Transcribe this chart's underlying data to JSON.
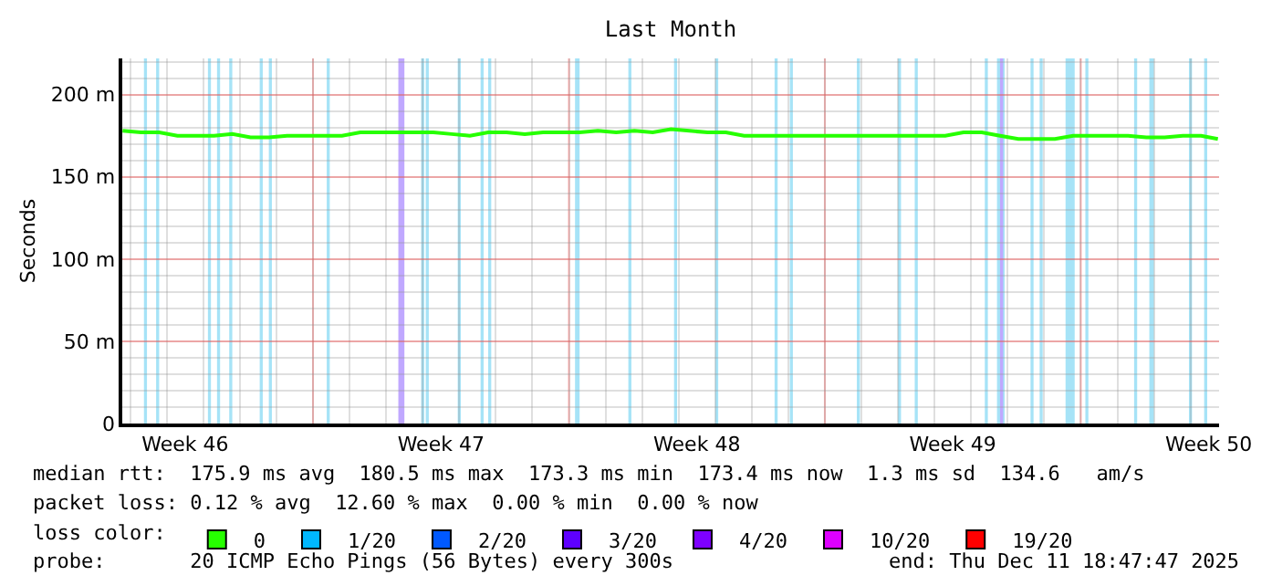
{
  "chart_data": {
    "type": "line",
    "title": "Last Month",
    "ylabel": "Seconds",
    "legend_title": "loss color:",
    "legend": "bottom",
    "grid": true,
    "marker": "none",
    "line_style": "solid",
    "xlim": [
      "2025-11-11T18:47",
      "2025-12-11T18:47"
    ],
    "xticks": [
      {
        "value": "2025-11-13T12:00",
        "label": "Week 46"
      },
      {
        "value": "2025-11-17T00:00",
        "label": null
      },
      {
        "value": "2025-11-20T12:00",
        "label": "Week 47"
      },
      {
        "value": "2025-11-24T00:00",
        "label": null
      },
      {
        "value": "2025-11-27T12:00",
        "label": "Week 48"
      },
      {
        "value": "2025-12-01T00:00",
        "label": null
      },
      {
        "value": "2025-12-04T12:00",
        "label": "Week 49"
      },
      {
        "value": "2025-12-08T00:00",
        "label": null
      },
      {
        "value": "2025-12-11T12:00",
        "label": "Week 50"
      }
    ],
    "ylim": [
      0,
      222
    ],
    "yticks": [
      0,
      {
        "value": 50,
        "label": "50 m"
      },
      {
        "value": 100,
        "label": "100 m"
      },
      {
        "value": 150,
        "label": "150 m"
      },
      {
        "value": 200,
        "label": "200 m"
      }
    ],
    "series": [
      {
        "name": "0",
        "color": "#26ff00",
        "x": [
          "2025-11-11T19:00",
          "2025-11-12T07:00",
          "2025-11-12T19:00",
          "2025-11-13T07:00",
          "2025-11-13T19:00",
          "2025-11-14T07:00",
          "2025-11-14T19:00",
          "2025-11-15T07:00",
          "2025-11-15T19:00",
          "2025-11-16T07:00",
          "2025-11-16T19:00",
          "2025-11-17T07:00",
          "2025-11-17T19:00",
          "2025-11-18T07:00",
          "2025-11-18T19:00",
          "2025-11-19T07:00",
          "2025-11-19T19:00",
          "2025-11-20T07:00",
          "2025-11-20T19:00",
          "2025-11-21T07:00",
          "2025-11-21T19:00",
          "2025-11-22T07:00",
          "2025-11-22T19:00",
          "2025-11-23T07:00",
          "2025-11-23T19:00",
          "2025-11-24T07:00",
          "2025-11-24T19:00",
          "2025-11-25T07:00",
          "2025-11-25T19:00",
          "2025-11-26T07:00",
          "2025-11-26T19:00",
          "2025-11-27T07:00",
          "2025-11-27T19:00",
          "2025-11-28T07:00",
          "2025-11-28T19:00",
          "2025-11-29T07:00",
          "2025-11-29T19:00",
          "2025-11-30T07:00",
          "2025-11-30T19:00",
          "2025-12-01T07:00",
          "2025-12-01T19:00",
          "2025-12-02T07:00",
          "2025-12-02T19:00",
          "2025-12-03T07:00",
          "2025-12-03T19:00",
          "2025-12-04T07:00",
          "2025-12-04T19:00",
          "2025-12-05T07:00",
          "2025-12-05T19:00",
          "2025-12-06T07:00",
          "2025-12-06T19:00",
          "2025-12-07T07:00",
          "2025-12-07T19:00",
          "2025-12-08T07:00",
          "2025-12-08T19:00",
          "2025-12-09T07:00",
          "2025-12-09T19:00",
          "2025-12-10T07:00",
          "2025-12-10T19:00",
          "2025-12-11T07:00",
          "2025-12-11T18:00"
        ],
        "values": [
          178,
          177,
          177,
          175,
          175,
          175,
          176,
          174,
          174,
          175,
          175,
          175,
          175,
          177,
          177,
          177,
          177,
          177,
          176,
          175,
          177,
          177,
          176,
          177,
          177,
          177,
          178,
          177,
          178,
          177,
          179,
          178,
          177,
          177,
          175,
          175,
          175,
          175,
          175,
          175,
          175,
          175,
          175,
          175,
          175,
          175,
          177,
          177,
          175,
          173,
          173,
          173,
          175,
          175,
          175,
          175,
          174,
          174,
          175,
          175,
          173
        ]
      },
      {
        "name": "1/20",
        "color": "#00b8ff"
      },
      {
        "name": "2/20",
        "color": "#0059ff"
      },
      {
        "name": "3/20",
        "color": "#5e00ff"
      },
      {
        "name": "4/20",
        "color": "#7e00ff"
      },
      {
        "name": "10/20",
        "color": "#dd00ff"
      },
      {
        "name": "19/20",
        "color": "#ff0000"
      }
    ],
    "bands": [
      {
        "axis": "x",
        "from": "2025-11-12T09:00",
        "to": "2025-11-12T11:00",
        "color": "#a6e3f7"
      },
      {
        "axis": "x",
        "from": "2025-11-12T17:00",
        "to": "2025-11-12T19:00",
        "color": "#a6e3f7"
      },
      {
        "axis": "x",
        "from": "2025-11-14T03:00",
        "to": "2025-11-14T05:00",
        "color": "#a6e3f7"
      },
      {
        "axis": "x",
        "from": "2025-11-14T09:00",
        "to": "2025-11-14T11:00",
        "color": "#a6e3f7"
      },
      {
        "axis": "x",
        "from": "2025-11-14T17:00",
        "to": "2025-11-14T19:00",
        "color": "#a6e3f7"
      },
      {
        "axis": "x",
        "from": "2025-11-15T13:00",
        "to": "2025-11-15T15:00",
        "color": "#a6e3f7"
      },
      {
        "axis": "x",
        "from": "2025-11-15T19:00",
        "to": "2025-11-15T21:00",
        "color": "#a6e3f7"
      },
      {
        "axis": "x",
        "from": "2025-11-17T09:00",
        "to": "2025-11-17T11:00",
        "color": "#a6e3f7"
      },
      {
        "axis": "x",
        "from": "2025-11-19T08:00",
        "to": "2025-11-19T12:00",
        "color": "#c0a8ff"
      },
      {
        "axis": "x",
        "from": "2025-11-19T23:00",
        "to": "2025-11-20T01:00",
        "color": "#a6e3f7"
      },
      {
        "axis": "x",
        "from": "2025-11-20T02:00",
        "to": "2025-11-20T04:00",
        "color": "#a6e3f7"
      },
      {
        "axis": "x",
        "from": "2025-11-20T23:00",
        "to": "2025-11-21T01:00",
        "color": "#a6e3f7"
      },
      {
        "axis": "x",
        "from": "2025-11-21T14:00",
        "to": "2025-11-21T16:00",
        "color": "#a6e3f7"
      },
      {
        "axis": "x",
        "from": "2025-11-21T19:00",
        "to": "2025-11-21T21:00",
        "color": "#a6e3f7"
      },
      {
        "axis": "x",
        "from": "2025-11-24T04:00",
        "to": "2025-11-24T07:00",
        "color": "#a6e3f7"
      },
      {
        "axis": "x",
        "from": "2025-11-25T15:00",
        "to": "2025-11-25T17:00",
        "color": "#a6e3f7"
      },
      {
        "axis": "x",
        "from": "2025-11-26T21:00",
        "to": "2025-11-26T23:00",
        "color": "#a6e3f7"
      },
      {
        "axis": "x",
        "from": "2025-11-28T00:00",
        "to": "2025-11-28T02:00",
        "color": "#a6e3f7"
      },
      {
        "axis": "x",
        "from": "2025-11-29T15:00",
        "to": "2025-11-29T17:00",
        "color": "#a6e3f7"
      },
      {
        "axis": "x",
        "from": "2025-11-30T01:00",
        "to": "2025-11-30T03:00",
        "color": "#a6e3f7"
      },
      {
        "axis": "x",
        "from": "2025-12-01T21:00",
        "to": "2025-12-01T23:00",
        "color": "#a6e3f7"
      },
      {
        "axis": "x",
        "from": "2025-12-03T00:00",
        "to": "2025-12-03T02:00",
        "color": "#a6e3f7"
      },
      {
        "axis": "x",
        "from": "2025-12-03T11:00",
        "to": "2025-12-03T13:00",
        "color": "#a6e3f7"
      },
      {
        "axis": "x",
        "from": "2025-12-05T09:00",
        "to": "2025-12-05T11:00",
        "color": "#a6e3f7"
      },
      {
        "axis": "x",
        "from": "2025-12-05T17:00",
        "to": "2025-12-05T22:00",
        "color": "#a6e3f7"
      },
      {
        "axis": "x",
        "from": "2025-12-05T19:00",
        "to": "2025-12-05T21:00",
        "color": "#c0a8ff"
      },
      {
        "axis": "x",
        "from": "2025-12-06T15:00",
        "to": "2025-12-06T17:00",
        "color": "#a6e3f7"
      },
      {
        "axis": "x",
        "from": "2025-12-06T21:00",
        "to": "2025-12-06T23:00",
        "color": "#a6e3f7"
      },
      {
        "axis": "x",
        "from": "2025-12-07T14:00",
        "to": "2025-12-07T20:00",
        "color": "#a6e3f7"
      },
      {
        "axis": "x",
        "from": "2025-12-08T03:00",
        "to": "2025-12-08T05:00",
        "color": "#a6e3f7"
      },
      {
        "axis": "x",
        "from": "2025-12-09T11:00",
        "to": "2025-12-09T13:00",
        "color": "#a6e3f7"
      },
      {
        "axis": "x",
        "from": "2025-12-09T21:00",
        "to": "2025-12-10T00:00",
        "color": "#a6e3f7"
      },
      {
        "axis": "x",
        "from": "2025-12-10T23:00",
        "to": "2025-12-11T01:00",
        "color": "#a6e3f7"
      },
      {
        "axis": "x",
        "from": "2025-12-11T09:00",
        "to": "2025-12-11T11:00",
        "color": "#a6e3f7"
      }
    ],
    "annotations": [
      "median rtt:  175.9 ms avg  180.5 ms max  173.3 ms min  173.4 ms now  1.3 ms sd  134.6   am/s",
      "packet loss: 0.12 % avg  12.60 % max  0.00 % min  0.00 % now",
      "probe:       20 ICMP Echo Pings (56 Bytes) every 300s",
      "end: Thu Dec 11 18:47:47 2025"
    ]
  }
}
